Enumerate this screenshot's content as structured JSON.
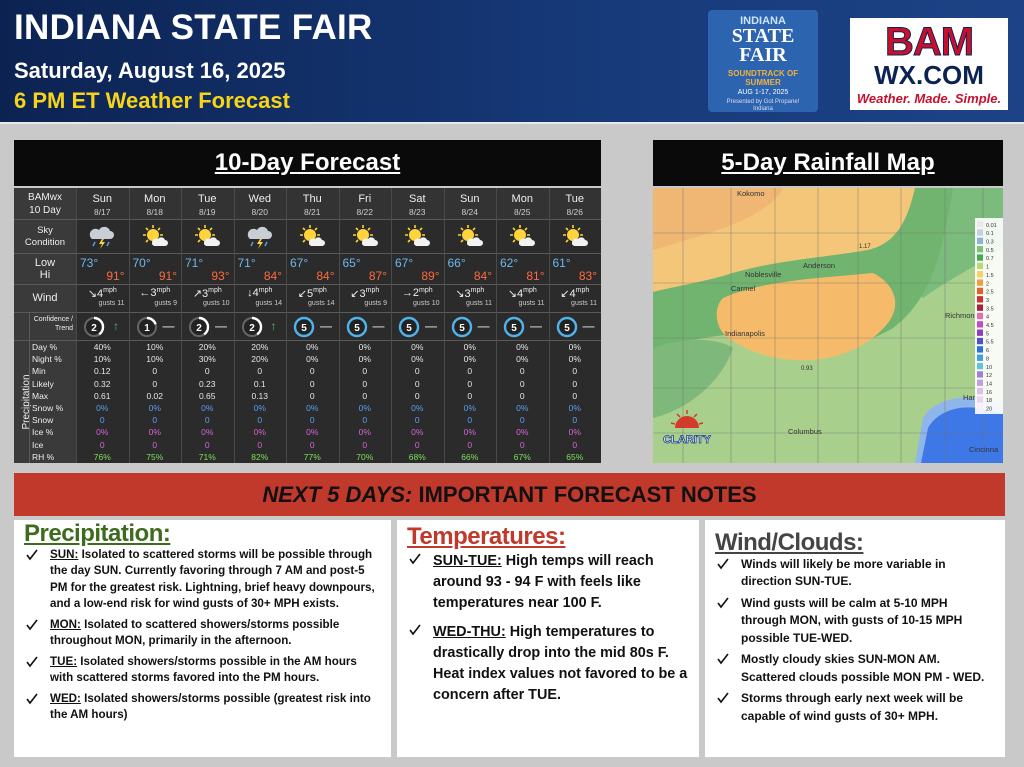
{
  "header": {
    "title": "INDIANA STATE FAIR",
    "date": "Saturday, August 16, 2025",
    "subtitle": "6 PM ET Weather Forecast"
  },
  "fair_logo": {
    "lines": [
      "INDIANA",
      "STATE",
      "FAIR"
    ],
    "tagline": "SOUNDTRACK OF SUMMER",
    "dates": "AUG 1-17, 2025",
    "sponsor": "Presented by Got Propane! Indiana"
  },
  "bam_logo": {
    "name": "BAM",
    "site": "WX.COM",
    "slogan": "Weather. Made. Simple."
  },
  "forecast": {
    "title": "10-Day Forecast",
    "corner": [
      "BAMwx",
      "10 Day"
    ],
    "days": [
      {
        "dow": "Sun",
        "date": "8/17"
      },
      {
        "dow": "Mon",
        "date": "8/18"
      },
      {
        "dow": "Tue",
        "date": "8/19"
      },
      {
        "dow": "Wed",
        "date": "8/20"
      },
      {
        "dow": "Thu",
        "date": "8/21"
      },
      {
        "dow": "Fri",
        "date": "8/22"
      },
      {
        "dow": "Sat",
        "date": "8/23"
      },
      {
        "dow": "Sun",
        "date": "8/24"
      },
      {
        "dow": "Mon",
        "date": "8/25"
      },
      {
        "dow": "Tue",
        "date": "8/26"
      }
    ],
    "sky": {
      "label": "Sky Condition",
      "icons": [
        "storm",
        "sun",
        "sun",
        "storm",
        "sun",
        "sun",
        "sun",
        "sun",
        "sun",
        "sun"
      ]
    },
    "low": {
      "label": "Low",
      "color": "#6cb8f0",
      "values": [
        "73°",
        "70°",
        "71°",
        "71°",
        "67°",
        "65°",
        "67°",
        "66°",
        "62°",
        "61°"
      ]
    },
    "hi": {
      "label": "Hi",
      "color": "#ff6a3d",
      "values": [
        "91°",
        "91°",
        "93°",
        "84°",
        "84°",
        "87°",
        "89°",
        "84°",
        "81°",
        "83°"
      ]
    },
    "wind": {
      "label": "Wind",
      "items": [
        {
          "dir": "↘",
          "speed": 4,
          "unit": "mph",
          "gusts": "gusts 11"
        },
        {
          "dir": "←",
          "speed": 3,
          "unit": "mph",
          "gusts": "gusts 9"
        },
        {
          "dir": "↗",
          "speed": 3,
          "unit": "mph",
          "gusts": "gusts 10"
        },
        {
          "dir": "↓",
          "speed": 4,
          "unit": "mph",
          "gusts": "gusts 14"
        },
        {
          "dir": "↙",
          "speed": 5,
          "unit": "mph",
          "gusts": "gusts 14"
        },
        {
          "dir": "↙",
          "speed": 3,
          "unit": "mph",
          "gusts": "gusts 9"
        },
        {
          "dir": "→",
          "speed": 2,
          "unit": "mph",
          "gusts": "gusts 10"
        },
        {
          "dir": "↘",
          "speed": 3,
          "unit": "mph",
          "gusts": "gusts 11"
        },
        {
          "dir": "↘",
          "speed": 4,
          "unit": "mph",
          "gusts": "gusts 11"
        },
        {
          "dir": "↙",
          "speed": 4,
          "unit": "mph",
          "gusts": "gusts 11"
        }
      ]
    },
    "confidence": {
      "label": "Confidence / Trend",
      "items": [
        {
          "level": 2,
          "trend": "↑",
          "color": "#ffffff",
          "trend_color": "#4cc06a"
        },
        {
          "level": 1,
          "trend": "—",
          "color": "#ffffff",
          "trend_color": "#bbbbbb"
        },
        {
          "level": 2,
          "trend": "—",
          "color": "#ffffff",
          "trend_color": "#bbbbbb"
        },
        {
          "level": 2,
          "trend": "↑",
          "color": "#ffffff",
          "trend_color": "#4cc06a"
        },
        {
          "level": 5,
          "trend": "—",
          "color": "#4fb3ea",
          "trend_color": "#bbbbbb"
        },
        {
          "level": 5,
          "trend": "—",
          "color": "#4fb3ea",
          "trend_color": "#bbbbbb"
        },
        {
          "level": 5,
          "trend": "—",
          "color": "#4fb3ea",
          "trend_color": "#bbbbbb"
        },
        {
          "level": 5,
          "trend": "—",
          "color": "#4fb3ea",
          "trend_color": "#bbbbbb"
        },
        {
          "level": 5,
          "trend": "—",
          "color": "#4fb3ea",
          "trend_color": "#bbbbbb"
        },
        {
          "level": 5,
          "trend": "—",
          "color": "#4fb3ea",
          "trend_color": "#bbbbbb"
        }
      ]
    },
    "precip_label": "Precipitation",
    "precip_rows": [
      {
        "label": "Day %",
        "color": "#e6e6e6",
        "values": [
          "40%",
          "10%",
          "20%",
          "20%",
          "0%",
          "0%",
          "0%",
          "0%",
          "0%",
          "0%"
        ]
      },
      {
        "label": "Night %",
        "color": "#e6e6e6",
        "values": [
          "10%",
          "10%",
          "30%",
          "20%",
          "0%",
          "0%",
          "0%",
          "0%",
          "0%",
          "0%"
        ]
      },
      {
        "label": "Min",
        "color": "#e6e6e6",
        "values": [
          "0.12",
          "0",
          "0",
          "0",
          "0",
          "0",
          "0",
          "0",
          "0",
          "0"
        ]
      },
      {
        "label": "Likely",
        "color": "#e6e6e6",
        "values": [
          "0.32",
          "0",
          "0.23",
          "0.1",
          "0",
          "0",
          "0",
          "0",
          "0",
          "0"
        ]
      },
      {
        "label": "Max",
        "color": "#e6e6e6",
        "values": [
          "0.61",
          "0.02",
          "0.65",
          "0.13",
          "0",
          "0",
          "0",
          "0",
          "0",
          "0"
        ]
      },
      {
        "label": "Snow %",
        "color": "#5b9ef2",
        "values": [
          "0%",
          "0%",
          "0%",
          "0%",
          "0%",
          "0%",
          "0%",
          "0%",
          "0%",
          "0%"
        ]
      },
      {
        "label": "Snow",
        "color": "#5b9ef2",
        "values": [
          "0",
          "0",
          "0",
          "0",
          "0",
          "0",
          "0",
          "0",
          "0",
          "0"
        ]
      },
      {
        "label": "Ice %",
        "color": "#d665d6",
        "values": [
          "0%",
          "0%",
          "0%",
          "0%",
          "0%",
          "0%",
          "0%",
          "0%",
          "0%",
          "0%"
        ]
      },
      {
        "label": "Ice",
        "color": "#d665d6",
        "values": [
          "0",
          "0",
          "0",
          "0",
          "0",
          "0",
          "0",
          "0",
          "0",
          "0"
        ]
      },
      {
        "label": "RH %",
        "color": "#7de05a",
        "values": [
          "76%",
          "75%",
          "71%",
          "82%",
          "77%",
          "70%",
          "68%",
          "66%",
          "67%",
          "65%"
        ]
      }
    ]
  },
  "map": {
    "title": "5-Day Rainfall Map",
    "brand": "CLARITY",
    "places": [
      "Kokomo",
      "Anderson",
      "Noblesville",
      "Carmel",
      "Indianapolis",
      "Richmond",
      "Columbus",
      "Ham",
      "Cincinna",
      "1.17",
      "0.93"
    ],
    "legend": [
      {
        "label": "0.01",
        "color": "#e9e9e9"
      },
      {
        "label": "0.1",
        "color": "#c5d1de"
      },
      {
        "label": "0.3",
        "color": "#8fb2d8"
      },
      {
        "label": "0.5",
        "color": "#7cc47c"
      },
      {
        "label": "0.7",
        "color": "#4fa64f"
      },
      {
        "label": "1",
        "color": "#b7d97a"
      },
      {
        "label": "1.5",
        "color": "#f4d26a"
      },
      {
        "label": "2",
        "color": "#f0a040"
      },
      {
        "label": "2.5",
        "color": "#e65f2e"
      },
      {
        "label": "3",
        "color": "#cf2f2f"
      },
      {
        "label": "3.5",
        "color": "#a8203c"
      },
      {
        "label": "4",
        "color": "#e070b0"
      },
      {
        "label": "4.5",
        "color": "#c24fc2"
      },
      {
        "label": "5",
        "color": "#8c3fc0"
      },
      {
        "label": "5.5",
        "color": "#5050d0"
      },
      {
        "label": "6",
        "color": "#2f6fe0"
      },
      {
        "label": "8",
        "color": "#40a0e0"
      },
      {
        "label": "10",
        "color": "#62c2e2"
      },
      {
        "label": "12",
        "color": "#a080d0"
      },
      {
        "label": "14",
        "color": "#bfa0e0"
      },
      {
        "label": "16",
        "color": "#dcbff0"
      },
      {
        "label": "18",
        "color": "#efd2f0"
      },
      {
        "label": "20",
        "color": "#fbeefb"
      }
    ]
  },
  "notes": {
    "banner_lead": "NEXT 5 DAYS:",
    "banner_rest": " IMPORTANT FORECAST NOTES",
    "columns": [
      {
        "heading": "Precipitation:",
        "color": "#3e6b1e",
        "items": [
          {
            "lead": "SUN:",
            "text": " Isolated to scattered storms will be possible through the day SUN.  Currently favoring through 7 AM and post-5 PM for the greatest risk.  Lightning, brief heavy downpours, and a low-end risk for wind gusts of 30+ MPH exists."
          },
          {
            "lead": "MON:",
            "text": " Isolated to scattered showers/storms possible throughout MON, primarily in the afternoon."
          },
          {
            "lead": "TUE:",
            "text": " Isolated showers/storms possible in the AM hours with scattered storms favored into the PM hours."
          },
          {
            "lead": "WED:",
            "text": " Isolated showers/storms possible (greatest risk into the AM hours)"
          }
        ]
      },
      {
        "heading": "Temperatures:",
        "color": "#c0392b",
        "items": [
          {
            "lead": "SUN-TUE:",
            "text": " High temps will reach around 93 - 94 F with feels like temperatures near 100 F."
          },
          {
            "lead": "WED-THU:",
            "text": " High temperatures to drastically drop into the mid 80s F. Heat index values not favored to be a concern after TUE."
          }
        ]
      },
      {
        "heading": "Wind/Clouds:",
        "color": "#444444",
        "items": [
          {
            "text": "Winds will likely be more variable in direction SUN-TUE."
          },
          {
            "text": "Wind gusts will be calm at 5-10 MPH through MON, with gusts of 10-15 MPH possible TUE-WED."
          },
          {
            "text": "Mostly cloudy skies SUN-MON AM. Scattered clouds possible MON PM - WED."
          },
          {
            "text": "Storms through early next week will be capable of wind gusts of 30+ MPH."
          }
        ]
      }
    ]
  }
}
